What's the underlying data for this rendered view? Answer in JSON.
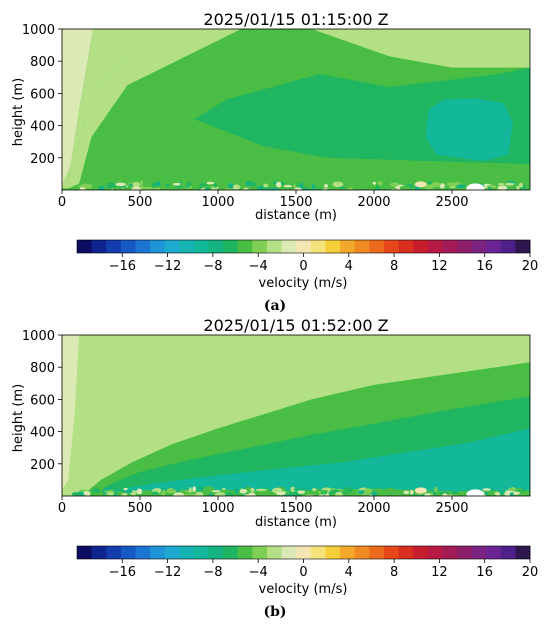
{
  "colorbar": {
    "label": "velocity (m/s)",
    "min": -20,
    "max": 20,
    "step": 2,
    "tick_labels": [
      "−16",
      "−12",
      "−8",
      "−4",
      "0",
      "4",
      "8",
      "12",
      "16",
      "20"
    ],
    "tick_values": [
      -16,
      -12,
      -8,
      -4,
      0,
      4,
      8,
      12,
      16,
      20
    ],
    "colors": [
      "#0c0c63",
      "#10248f",
      "#133cad",
      "#1658c4",
      "#1c75d2",
      "#1e93d6",
      "#1ea9d0",
      "#17b3b2",
      "#12b899",
      "#14b380",
      "#20b561",
      "#49bd44",
      "#80cf55",
      "#b3e085",
      "#dbe9b5",
      "#f4e6b3",
      "#f6e27a",
      "#f5cf3a",
      "#f3a82b",
      "#ef8a22",
      "#ec6a1c",
      "#e6481a",
      "#d82f1f",
      "#c71e2e",
      "#b61a44",
      "#a21b56",
      "#8e1f6a",
      "#7c2280",
      "#6a2494",
      "#4f1f8a",
      "#2e174e"
    ]
  },
  "chart_data": [
    {
      "type": "heatmap",
      "panel": "(a)",
      "title": "2025/01/15 01:15:00 Z",
      "xlabel": "distance (m)",
      "ylabel": "height (m)",
      "xlim": [
        0,
        3000
      ],
      "ylim": [
        0,
        1000
      ],
      "xticks": [
        0,
        500,
        1000,
        1500,
        2000,
        2500
      ],
      "yticks": [
        200,
        400,
        600,
        800,
        1000
      ],
      "field": "velocity (m/s)",
      "contours": [
        {
          "velocity": -1,
          "region": "rx",
          "points": [
            [
              0,
              1000
            ],
            [
              200,
              1000
            ],
            [
              110,
              500
            ],
            [
              55,
              150
            ],
            [
              0,
              30
            ]
          ]
        },
        {
          "velocity": -2,
          "region": "rx",
          "points": [
            [
              200,
              1000
            ],
            [
              560,
              1000
            ],
            [
              200,
              600
            ],
            [
              90,
              250
            ],
            [
              30,
              10
            ],
            [
              0,
              10
            ],
            [
              0,
              30
            ],
            [
              55,
              150
            ],
            [
              110,
              500
            ]
          ]
        },
        {
          "velocity": -3,
          "region": "rx",
          "points": [
            [
              560,
              1000
            ],
            [
              1150,
              1000
            ],
            [
              420,
              650
            ],
            [
              190,
              330
            ],
            [
              110,
              40
            ],
            [
              40,
              10
            ],
            [
              30,
              10
            ],
            [
              90,
              250
            ],
            [
              200,
              600
            ]
          ]
        },
        {
          "velocity": -5,
          "region": "rx",
          "points": [
            [
              1150,
              1000
            ],
            [
              3000,
              1000
            ],
            [
              3000,
              0
            ],
            [
              80,
              0
            ],
            [
              110,
              40
            ],
            [
              190,
              330
            ],
            [
              420,
              650
            ]
          ]
        },
        {
          "velocity": -3,
          "region": "rx",
          "points": [
            [
              1600,
              1000
            ],
            [
              3000,
              1000
            ],
            [
              3000,
              760
            ],
            [
              2500,
              760
            ],
            [
              2100,
              830
            ]
          ]
        },
        {
          "velocity": -7,
          "region": "rx",
          "points": [
            [
              1650,
              720
            ],
            [
              2100,
              640
            ],
            [
              2800,
              720
            ],
            [
              3000,
              760
            ],
            [
              3000,
              160
            ],
            [
              1700,
              200
            ],
            [
              1300,
              270
            ],
            [
              850,
              440
            ],
            [
              1050,
              560
            ]
          ]
        },
        {
          "velocity": -9,
          "region": "rx",
          "points": [
            [
              2350,
              500
            ],
            [
              2450,
              560
            ],
            [
              2650,
              570
            ],
            [
              2830,
              540
            ],
            [
              2890,
              420
            ],
            [
              2860,
              220
            ],
            [
              2700,
              180
            ],
            [
              2400,
              220
            ],
            [
              2330,
              330
            ]
          ]
        },
        {
          "velocity": -5,
          "region": "rx",
          "points": [
            [
              80,
              20
            ],
            [
              500,
              30
            ],
            [
              900,
              40
            ],
            [
              1400,
              40
            ],
            [
              2000,
              60
            ],
            [
              2600,
              45
            ],
            [
              3000,
              50
            ],
            [
              3000,
              0
            ],
            [
              80,
              0
            ]
          ]
        }
      ]
    },
    {
      "type": "heatmap",
      "panel": "(b)",
      "title": "2025/01/15 01:52:00 Z",
      "xlabel": "distance (m)",
      "ylabel": "height (m)",
      "xlim": [
        0,
        3000
      ],
      "ylim": [
        0,
        1000
      ],
      "xticks": [
        0,
        500,
        1000,
        1500,
        2000,
        2500
      ],
      "yticks": [
        200,
        400,
        600,
        800,
        1000
      ],
      "field": "velocity (m/s)",
      "contours": [
        {
          "velocity": -2,
          "region": "rx",
          "points": [
            [
              0,
              1000
            ],
            [
              3000,
              1000
            ],
            [
              3000,
              0
            ],
            [
              0,
              0
            ]
          ]
        },
        {
          "velocity": -1,
          "region": "rx",
          "points": [
            [
              0,
              1000
            ],
            [
              110,
              1000
            ],
            [
              80,
              500
            ],
            [
              40,
              100
            ],
            [
              0,
              40
            ]
          ]
        },
        {
          "velocity": -3,
          "region": "rx",
          "points": [
            [
              950,
              1000
            ],
            [
              1900,
              1000
            ],
            [
              3000,
              980
            ],
            [
              3000,
              870
            ],
            [
              2500,
              830
            ],
            [
              2100,
              790
            ],
            [
              1700,
              700
            ],
            [
              1300,
              600
            ],
            [
              900,
              500
            ],
            [
              600,
              400
            ],
            [
              400,
              300
            ],
            [
              250,
              180
            ],
            [
              130,
              60
            ],
            [
              0,
              20
            ],
            [
              0,
              0
            ],
            [
              3000,
              0
            ],
            [
              3000,
              870
            ]
          ]
        },
        {
          "velocity": -3,
          "region": "rx",
          "points": [
            [
              1100,
              960
            ],
            [
              1900,
              1000
            ],
            [
              3000,
              1000
            ],
            [
              3000,
              870
            ],
            [
              2500,
              830
            ],
            [
              2100,
              800
            ],
            [
              1600,
              830
            ],
            [
              1200,
              900
            ]
          ]
        },
        {
          "velocity": -5,
          "region": "rx",
          "points": [
            [
              3000,
              830
            ],
            [
              2500,
              760
            ],
            [
              2000,
              690
            ],
            [
              1600,
              600
            ],
            [
              1300,
              510
            ],
            [
              1000,
              420
            ],
            [
              700,
              320
            ],
            [
              450,
              210
            ],
            [
              250,
              100
            ],
            [
              150,
              20
            ],
            [
              3000,
              0
            ]
          ]
        },
        {
          "velocity": -7,
          "region": "rx",
          "points": [
            [
              3000,
              620
            ],
            [
              2500,
              540
            ],
            [
              2000,
              450
            ],
            [
              1600,
              380
            ],
            [
              1200,
              300
            ],
            [
              800,
              220
            ],
            [
              500,
              150
            ],
            [
              300,
              70
            ],
            [
              250,
              20
            ],
            [
              3000,
              0
            ]
          ]
        },
        {
          "velocity": -9,
          "region": "rx",
          "points": [
            [
              3000,
              420
            ],
            [
              2600,
              330
            ],
            [
              2200,
              270
            ],
            [
              1800,
              210
            ],
            [
              1400,
              170
            ],
            [
              1000,
              130
            ],
            [
              600,
              80
            ],
            [
              350,
              40
            ],
            [
              300,
              15
            ],
            [
              3000,
              0
            ]
          ]
        },
        {
          "velocity": -5,
          "region": "rx",
          "points": [
            [
              90,
              15
            ],
            [
              500,
              35
            ],
            [
              900,
              40
            ],
            [
              1400,
              30
            ],
            [
              2000,
              45
            ],
            [
              2500,
              30
            ],
            [
              3000,
              35
            ],
            [
              3000,
              0
            ],
            [
              90,
              0
            ]
          ]
        }
      ]
    }
  ],
  "captions": [
    "(a)",
    "(b)"
  ]
}
